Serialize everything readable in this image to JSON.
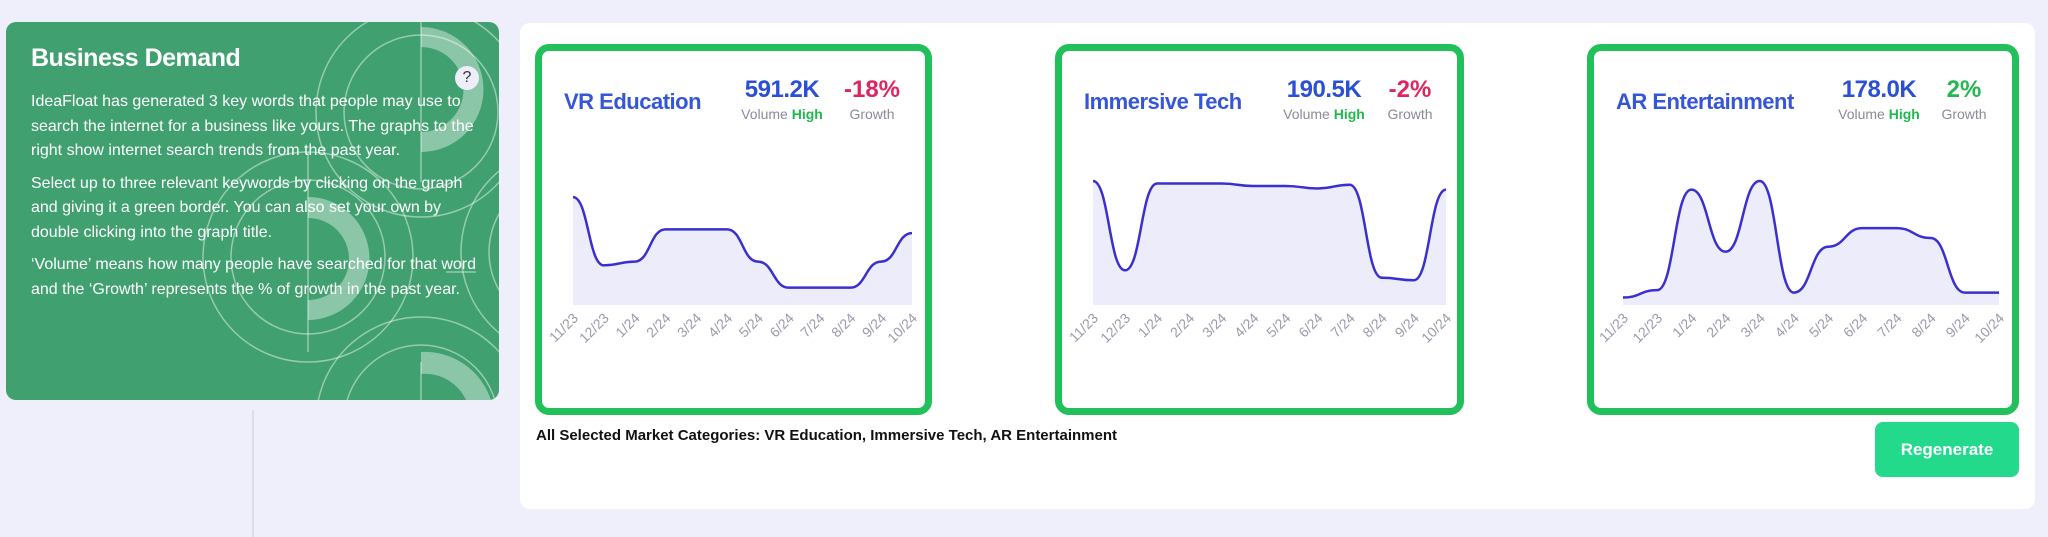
{
  "info": {
    "title": "Business Demand",
    "help_icon": "?",
    "paragraphs": [
      "IdeaFloat has generated 3 key words that people may use to search the internet for a business like yours. The graphs to the right show internet search trends from the past year.",
      "Select up to three relevant keywords by clicking on the graph and giving it a green border. You can also set your own by double clicking into the graph title.",
      "‘Volume’ means how many people have searched for that word and the ‘Growth’ represents the % of growth in the past year."
    ]
  },
  "colors": {
    "selected_border": "#22c05a",
    "line": "#3a2fcf",
    "fill": "#ececfb",
    "negative": "#e0245e",
    "positive": "#22b850",
    "accent_button": "#22d98c"
  },
  "chart_data": [
    {
      "type": "line",
      "title": "VR Education",
      "volume": "591.2K",
      "volume_label": "Volume",
      "volume_level": "High",
      "growth": "-18%",
      "growth_label": "Growth",
      "categories": [
        "11/23",
        "12/23",
        "1/24",
        "2/24",
        "3/24",
        "4/24",
        "5/24",
        "6/24",
        "7/24",
        "8/24",
        "9/24",
        "10/24"
      ],
      "values": [
        87,
        32,
        35,
        61,
        61,
        61,
        35,
        14,
        14,
        14,
        35,
        58
      ],
      "ylim": [
        0,
        100
      ]
    },
    {
      "type": "line",
      "title": "Immersive Tech",
      "volume": "190.5K",
      "volume_label": "Volume",
      "volume_level": "High",
      "growth": "-2%",
      "growth_label": "Growth",
      "categories": [
        "11/23",
        "12/23",
        "1/24",
        "2/24",
        "3/24",
        "4/24",
        "5/24",
        "6/24",
        "7/24",
        "8/24",
        "9/24",
        "10/24"
      ],
      "values": [
        100,
        28,
        98,
        98,
        98,
        96,
        96,
        94,
        97,
        22,
        20,
        93
      ],
      "ylim": [
        0,
        100
      ]
    },
    {
      "type": "line",
      "title": "AR Entertainment",
      "volume": "178.0K",
      "volume_label": "Volume",
      "volume_level": "High",
      "growth": "2%",
      "growth_label": "Growth",
      "categories": [
        "11/23",
        "12/23",
        "1/24",
        "2/24",
        "3/24",
        "4/24",
        "5/24",
        "6/24",
        "7/24",
        "8/24",
        "9/24",
        "10/24"
      ],
      "values": [
        6,
        12,
        93,
        43,
        100,
        10,
        47,
        62,
        62,
        54,
        10,
        10
      ],
      "ylim": [
        0,
        100
      ]
    }
  ],
  "caption": "All Selected Market Categories: VR Education, Immersive Tech, AR Entertainment",
  "regenerate_label": "Regenerate"
}
